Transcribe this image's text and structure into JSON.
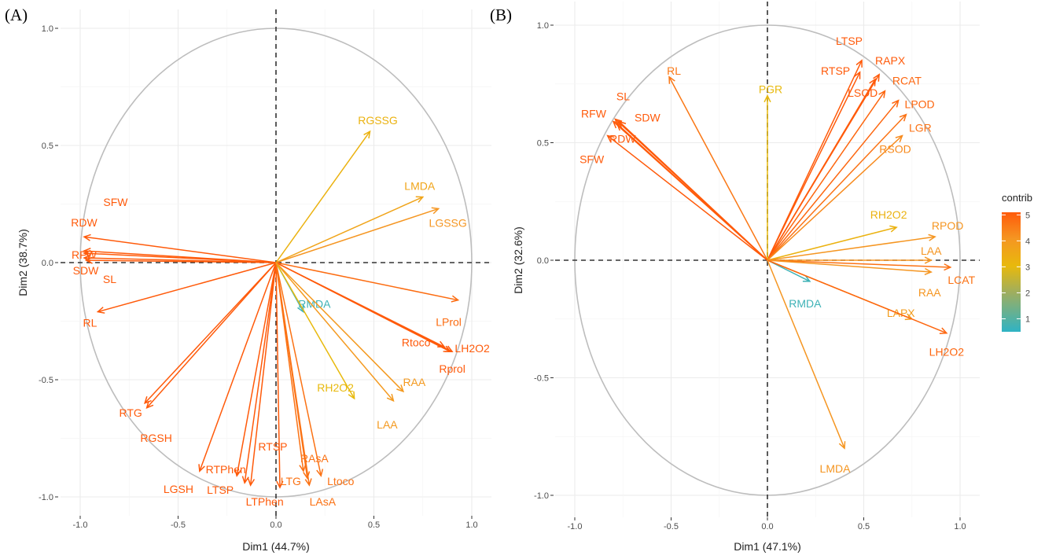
{
  "colors": {
    "scale": [
      [
        0.5,
        "#2fb3c4"
      ],
      [
        2,
        "#9fae5e"
      ],
      [
        3,
        "#e8b90c"
      ],
      [
        4,
        "#f59622"
      ],
      [
        5,
        "#ff5a0a"
      ]
    ],
    "circle": "#bdbdbd",
    "grid": "#ebebeb"
  },
  "legend": {
    "title": "contrib",
    "ticks": [
      "1",
      "2",
      "3",
      "4",
      "5"
    ]
  },
  "chart_data": [
    {
      "type": "pca-variable-correlation-circle",
      "panel_label": "(A)",
      "xlabel": "Dim1 (44.7%)",
      "ylabel": "Dim2 (38.7%)",
      "xlim": [
        -1.0,
        1.0
      ],
      "ylim": [
        -1.0,
        1.0
      ],
      "xticks": [
        "-1.0",
        "-0.5",
        "0.0",
        "0.5",
        "1.0"
      ],
      "yticks": [
        "-1.0",
        "-0.5",
        "0.0",
        "0.5",
        "1.0"
      ],
      "grid": true,
      "variables": [
        {
          "name": "SFW",
          "x": -0.98,
          "y": 0.05,
          "contrib": 5
        },
        {
          "name": "RDW",
          "x": -0.98,
          "y": 0.11,
          "contrib": 5
        },
        {
          "name": "RFW",
          "x": -0.98,
          "y": 0.04,
          "contrib": 5
        },
        {
          "name": "SDW",
          "x": -0.98,
          "y": 0.02,
          "contrib": 5
        },
        {
          "name": "SL",
          "x": -0.97,
          "y": 0.01,
          "contrib": 5
        },
        {
          "name": "RL",
          "x": -0.91,
          "y": -0.21,
          "contrib": 5
        },
        {
          "name": "RTG",
          "x": -0.67,
          "y": -0.6,
          "contrib": 5
        },
        {
          "name": "RGSH",
          "x": -0.66,
          "y": -0.62,
          "contrib": 5
        },
        {
          "name": "LGSH",
          "x": -0.39,
          "y": -0.89,
          "contrib": 5
        },
        {
          "name": "RTPhen",
          "x": -0.2,
          "y": -0.91,
          "contrib": 5
        },
        {
          "name": "LTSP",
          "x": -0.16,
          "y": -0.94,
          "contrib": 5
        },
        {
          "name": "LTPhen",
          "x": -0.13,
          "y": -0.95,
          "contrib": 5
        },
        {
          "name": "RTSP",
          "x": 0.02,
          "y": -0.96,
          "contrib": 5
        },
        {
          "name": "LTG",
          "x": 0.14,
          "y": -0.89,
          "contrib": 4.6
        },
        {
          "name": "RAsA",
          "x": 0.16,
          "y": -0.92,
          "contrib": 4.6
        },
        {
          "name": "LAsA",
          "x": 0.17,
          "y": -0.95,
          "contrib": 4.6
        },
        {
          "name": "Ltoco",
          "x": 0.23,
          "y": -0.91,
          "contrib": 4.6
        },
        {
          "name": "RGSSG",
          "x": 0.48,
          "y": 0.56,
          "contrib": 3.2
        },
        {
          "name": "LMDA",
          "x": 0.75,
          "y": 0.28,
          "contrib": 3.6
        },
        {
          "name": "LGSSG",
          "x": 0.83,
          "y": 0.23,
          "contrib": 4
        },
        {
          "name": "LProl",
          "x": 0.93,
          "y": -0.16,
          "contrib": 4.7
        },
        {
          "name": "Rtoco",
          "x": 0.86,
          "y": -0.36,
          "contrib": 5
        },
        {
          "name": "LH2O2",
          "x": 0.89,
          "y": -0.38,
          "contrib": 5
        },
        {
          "name": "Rprol",
          "x": 0.9,
          "y": -0.38,
          "contrib": 5
        },
        {
          "name": "RMDA",
          "x": 0.14,
          "y": -0.21,
          "contrib": 0.7
        },
        {
          "name": "RH2O2",
          "x": 0.4,
          "y": -0.58,
          "contrib": 3
        },
        {
          "name": "RAA",
          "x": 0.65,
          "y": -0.55,
          "contrib": 3.9
        },
        {
          "name": "LAA",
          "x": 0.6,
          "y": -0.59,
          "contrib": 3.9
        }
      ]
    },
    {
      "type": "pca-variable-correlation-circle",
      "panel_label": "(B)",
      "xlabel": "Dim1 (47.1%)",
      "ylabel": "Dim2 (32.6%)",
      "xlim": [
        -1.0,
        1.0
      ],
      "ylim": [
        -1.0,
        1.0
      ],
      "xticks": [
        "-1.0",
        "-0.5",
        "0.0",
        "0.5",
        "1.0"
      ],
      "yticks": [
        "-1.0",
        "-0.5",
        "0.0",
        "0.5",
        "1.0"
      ],
      "grid": true,
      "variables": [
        {
          "name": "LTSP",
          "x": 0.49,
          "y": 0.85,
          "contrib": 5
        },
        {
          "name": "RTSP",
          "x": 0.48,
          "y": 0.8,
          "contrib": 5
        },
        {
          "name": "RAPX",
          "x": 0.58,
          "y": 0.79,
          "contrib": 5
        },
        {
          "name": "LSOD",
          "x": 0.56,
          "y": 0.77,
          "contrib": 5
        },
        {
          "name": "RCAT",
          "x": 0.61,
          "y": 0.72,
          "contrib": 4.8
        },
        {
          "name": "LPOD",
          "x": 0.68,
          "y": 0.68,
          "contrib": 4.8
        },
        {
          "name": "LGR",
          "x": 0.72,
          "y": 0.62,
          "contrib": 4.6
        },
        {
          "name": "RSOD",
          "x": 0.7,
          "y": 0.53,
          "contrib": 4.2
        },
        {
          "name": "PGR",
          "x": 0.0,
          "y": 0.7,
          "contrib": 3
        },
        {
          "name": "RL",
          "x": -0.51,
          "y": 0.78,
          "contrib": 4.5
        },
        {
          "name": "SL",
          "x": -0.79,
          "y": 0.6,
          "contrib": 5
        },
        {
          "name": "RFW",
          "x": -0.8,
          "y": 0.59,
          "contrib": 5
        },
        {
          "name": "SDW",
          "x": -0.77,
          "y": 0.59,
          "contrib": 5
        },
        {
          "name": "RDW",
          "x": -0.78,
          "y": 0.58,
          "contrib": 5
        },
        {
          "name": "SFW",
          "x": -0.83,
          "y": 0.53,
          "contrib": 5
        },
        {
          "name": "RH2O2",
          "x": 0.67,
          "y": 0.14,
          "contrib": 3.2
        },
        {
          "name": "RPOD",
          "x": 0.87,
          "y": 0.1,
          "contrib": 4
        },
        {
          "name": "LAA",
          "x": 0.85,
          "y": 0.0,
          "contrib": 4
        },
        {
          "name": "LCAT",
          "x": 0.95,
          "y": -0.03,
          "contrib": 4.6
        },
        {
          "name": "RAA",
          "x": 0.85,
          "y": -0.05,
          "contrib": 4
        },
        {
          "name": "RMDA",
          "x": 0.22,
          "y": -0.09,
          "contrib": 0.7
        },
        {
          "name": "LAPX",
          "x": 0.75,
          "y": -0.25,
          "contrib": 3.8
        },
        {
          "name": "LH2O2",
          "x": 0.93,
          "y": -0.31,
          "contrib": 4.8
        },
        {
          "name": "LMDA",
          "x": 0.4,
          "y": -0.8,
          "contrib": 4
        }
      ]
    }
  ]
}
